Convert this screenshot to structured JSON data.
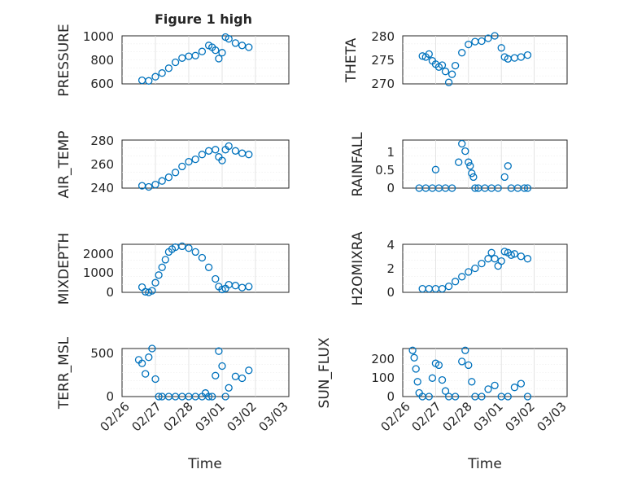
{
  "chart_data": [
    {
      "type": "scatter",
      "title": "Figure 1 high",
      "ylabel": "PRESSURE",
      "ylim": [
        600,
        1000
      ],
      "yticks": [
        "600",
        "800",
        "1000"
      ],
      "x": [
        0.6,
        0.8,
        1.0,
        1.2,
        1.4,
        1.6,
        1.8,
        2.0,
        2.2,
        2.4,
        2.6,
        2.7,
        2.8,
        2.9,
        3.0,
        3.1,
        3.2,
        3.4,
        3.6,
        3.8
      ],
      "y": [
        630,
        625,
        660,
        690,
        730,
        780,
        815,
        830,
        835,
        870,
        920,
        905,
        880,
        810,
        860,
        990,
        975,
        940,
        920,
        905
      ]
    },
    {
      "type": "scatter",
      "title": "",
      "ylabel": "THETA",
      "ylim": [
        270,
        280
      ],
      "yticks": [
        "270",
        "275",
        "280"
      ],
      "x": [
        0.6,
        0.7,
        0.8,
        0.9,
        1.0,
        1.1,
        1.2,
        1.3,
        1.4,
        1.5,
        1.6,
        1.8,
        2.0,
        2.2,
        2.4,
        2.6,
        2.8,
        3.0,
        3.1,
        3.2,
        3.4,
        3.6,
        3.8
      ],
      "y": [
        275.8,
        275.6,
        276.2,
        274.8,
        274.1,
        273.5,
        273.9,
        272.6,
        270.3,
        272.0,
        273.8,
        276.5,
        278.2,
        278.8,
        278.9,
        279.5,
        280.0,
        277.5,
        275.6,
        275.2,
        275.4,
        275.6,
        276.0
      ]
    },
    {
      "type": "scatter",
      "title": "",
      "ylabel": "AIR_TEMP",
      "ylim": [
        240,
        280
      ],
      "yticks": [
        "240",
        "260",
        "280"
      ],
      "x": [
        0.6,
        0.8,
        1.0,
        1.2,
        1.4,
        1.6,
        1.8,
        2.0,
        2.2,
        2.4,
        2.6,
        2.8,
        2.9,
        3.0,
        3.1,
        3.2,
        3.4,
        3.6,
        3.8
      ],
      "y": [
        242,
        241,
        243,
        246,
        249,
        253,
        258,
        262,
        264,
        268,
        271,
        272,
        266,
        263,
        272,
        275,
        271,
        269,
        268
      ]
    },
    {
      "type": "scatter",
      "title": "",
      "ylabel": "RAINFALL",
      "ylim": [
        0,
        1.3
      ],
      "yticks": [
        "0",
        "0.5",
        "1"
      ],
      "x": [
        0.5,
        0.7,
        0.9,
        1.0,
        1.1,
        1.3,
        1.5,
        1.7,
        1.8,
        1.9,
        2.0,
        2.05,
        2.1,
        2.15,
        2.2,
        2.3,
        2.5,
        2.7,
        2.9,
        3.1,
        3.2,
        3.3,
        3.5,
        3.7,
        3.8
      ],
      "y": [
        0,
        0,
        0,
        0.5,
        0,
        0,
        0,
        0.7,
        1.2,
        1.0,
        0.7,
        0.6,
        0.4,
        0.3,
        0,
        0,
        0,
        0,
        0,
        0.3,
        0.6,
        0,
        0,
        0,
        0
      ]
    },
    {
      "type": "scatter",
      "title": "",
      "ylabel": "MIXDEPTH",
      "ylim": [
        0,
        2500
      ],
      "yticks": [
        "0",
        "1000",
        "2000"
      ],
      "x": [
        0.6,
        0.7,
        0.8,
        0.9,
        1.0,
        1.1,
        1.2,
        1.3,
        1.4,
        1.5,
        1.6,
        1.8,
        2.0,
        2.2,
        2.4,
        2.6,
        2.8,
        2.9,
        3.0,
        3.1,
        3.2,
        3.4,
        3.6,
        3.8
      ],
      "y": [
        270,
        30,
        0,
        80,
        500,
        900,
        1300,
        1700,
        2100,
        2250,
        2350,
        2400,
        2300,
        2100,
        1800,
        1300,
        700,
        300,
        150,
        200,
        400,
        350,
        250,
        300
      ]
    },
    {
      "type": "scatter",
      "title": "",
      "ylabel": "H2OMIXRA",
      "ylim": [
        0,
        4
      ],
      "yticks": [
        "0",
        "2",
        "4"
      ],
      "x": [
        0.6,
        0.8,
        1.0,
        1.2,
        1.4,
        1.6,
        1.8,
        2.0,
        2.2,
        2.4,
        2.6,
        2.7,
        2.8,
        2.9,
        3.0,
        3.1,
        3.2,
        3.3,
        3.4,
        3.6,
        3.8
      ],
      "y": [
        0.3,
        0.3,
        0.3,
        0.3,
        0.5,
        0.9,
        1.3,
        1.7,
        2.0,
        2.4,
        2.8,
        3.3,
        2.8,
        2.2,
        2.6,
        3.4,
        3.3,
        3.1,
        3.2,
        3.0,
        2.8
      ]
    },
    {
      "type": "scatter",
      "title": "",
      "ylabel": "TERR_MSL",
      "ylim": [
        0,
        550
      ],
      "yticks": [
        "0",
        "500"
      ],
      "x": [
        0.5,
        0.6,
        0.7,
        0.8,
        0.9,
        1.0,
        1.1,
        1.2,
        1.4,
        1.6,
        1.8,
        2.0,
        2.2,
        2.4,
        2.5,
        2.6,
        2.7,
        2.8,
        2.9,
        3.0,
        3.1,
        3.2,
        3.4,
        3.6,
        3.8
      ],
      "y": [
        420,
        380,
        260,
        450,
        550,
        200,
        0,
        0,
        0,
        0,
        0,
        0,
        0,
        0,
        40,
        0,
        0,
        240,
        520,
        350,
        0,
        100,
        230,
        210,
        300
      ]
    },
    {
      "type": "scatter",
      "title": "",
      "ylabel": "SUN_FLUX",
      "ylim": [
        0,
        260
      ],
      "yticks": [
        "0",
        "100",
        "200"
      ],
      "x": [
        0.3,
        0.35,
        0.4,
        0.45,
        0.5,
        0.6,
        0.8,
        0.9,
        1.0,
        1.1,
        1.2,
        1.3,
        1.4,
        1.6,
        1.8,
        1.9,
        2.0,
        2.1,
        2.2,
        2.4,
        2.6,
        2.8,
        3.0,
        3.2,
        3.4,
        3.6,
        3.8
      ],
      "y": [
        250,
        210,
        150,
        80,
        20,
        0,
        0,
        100,
        180,
        170,
        90,
        30,
        0,
        0,
        190,
        250,
        170,
        80,
        0,
        0,
        40,
        60,
        0,
        0,
        50,
        70,
        0
      ]
    }
  ],
  "xticks": [
    "02/26",
    "02/27",
    "02/28",
    "03/01",
    "03/02",
    "03/03"
  ],
  "xlabel": "Time"
}
